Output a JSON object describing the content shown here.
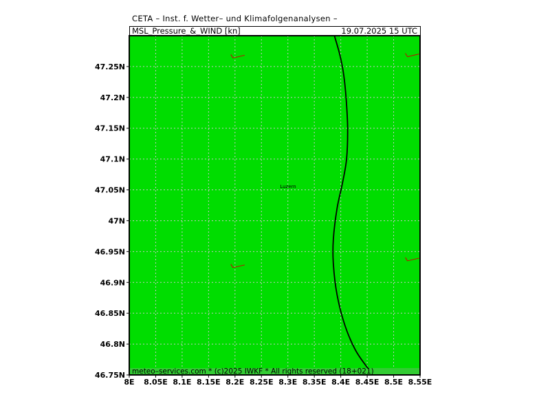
{
  "header": {
    "title": "CETA – Inst. f. Wetter– und Klimafolgenanalysen –",
    "product": "MSL_Pressure_&_WIND [kn]",
    "datetime": "19.07.2025 15 UTC"
  },
  "map": {
    "lon_range": [
      8.0,
      8.55
    ],
    "lat_range": [
      46.75,
      47.3
    ],
    "fill_color": "#00dd00",
    "grid_color": "#c8c8c8",
    "grid_style": "dotted",
    "lat_ticks": [
      {
        "value": 47.25,
        "label": "47.25N"
      },
      {
        "value": 47.2,
        "label": "47.2N"
      },
      {
        "value": 47.15,
        "label": "47.15N"
      },
      {
        "value": 47.1,
        "label": "47.1N"
      },
      {
        "value": 47.05,
        "label": "47.05N"
      },
      {
        "value": 47.0,
        "label": "47N"
      },
      {
        "value": 46.95,
        "label": "46.95N"
      },
      {
        "value": 46.9,
        "label": "46.9N"
      },
      {
        "value": 46.85,
        "label": "46.85N"
      },
      {
        "value": 46.8,
        "label": "46.8N"
      },
      {
        "value": 46.75,
        "label": "46.75N"
      }
    ],
    "lon_ticks": [
      {
        "value": 8.0,
        "label": "8E"
      },
      {
        "value": 8.05,
        "label": "8.05E"
      },
      {
        "value": 8.1,
        "label": "8.1E"
      },
      {
        "value": 8.15,
        "label": "8.15E"
      },
      {
        "value": 8.2,
        "label": "8.2E"
      },
      {
        "value": 8.25,
        "label": "8.25E"
      },
      {
        "value": 8.3,
        "label": "8.3E"
      },
      {
        "value": 8.35,
        "label": "8.35E"
      },
      {
        "value": 8.4,
        "label": "8.4E"
      },
      {
        "value": 8.45,
        "label": "8.45E"
      },
      {
        "value": 8.5,
        "label": "8.5E"
      },
      {
        "value": 8.55,
        "label": "8.55E"
      }
    ],
    "isobar": {
      "color": "#000000",
      "points": [
        [
          8.388,
          47.3
        ],
        [
          8.398,
          47.27
        ],
        [
          8.405,
          47.24
        ],
        [
          8.41,
          47.2
        ],
        [
          8.413,
          47.15
        ],
        [
          8.411,
          47.1
        ],
        [
          8.403,
          47.06
        ],
        [
          8.393,
          47.02
        ],
        [
          8.386,
          46.97
        ],
        [
          8.386,
          46.93
        ],
        [
          8.393,
          46.88
        ],
        [
          8.408,
          46.83
        ],
        [
          8.428,
          46.79
        ],
        [
          8.452,
          46.76
        ],
        [
          8.462,
          46.75
        ]
      ]
    },
    "city": {
      "name": "Luzern",
      "lon": 8.28,
      "lat": 47.055
    },
    "wind_barbs": [
      {
        "lon": 8.2,
        "lat": 47.265,
        "color": "#cc0000"
      },
      {
        "lon": 8.53,
        "lat": 47.267,
        "color": "#cc0000"
      },
      {
        "lon": 8.2,
        "lat": 46.925,
        "color": "#cc0000"
      },
      {
        "lon": 8.53,
        "lat": 46.936,
        "color": "#cc0000"
      }
    ],
    "footer": {
      "text": "meteo–services.com * (c)2025 IWKF * All rights reserved (18+021)",
      "bg": "#33cc33"
    }
  }
}
